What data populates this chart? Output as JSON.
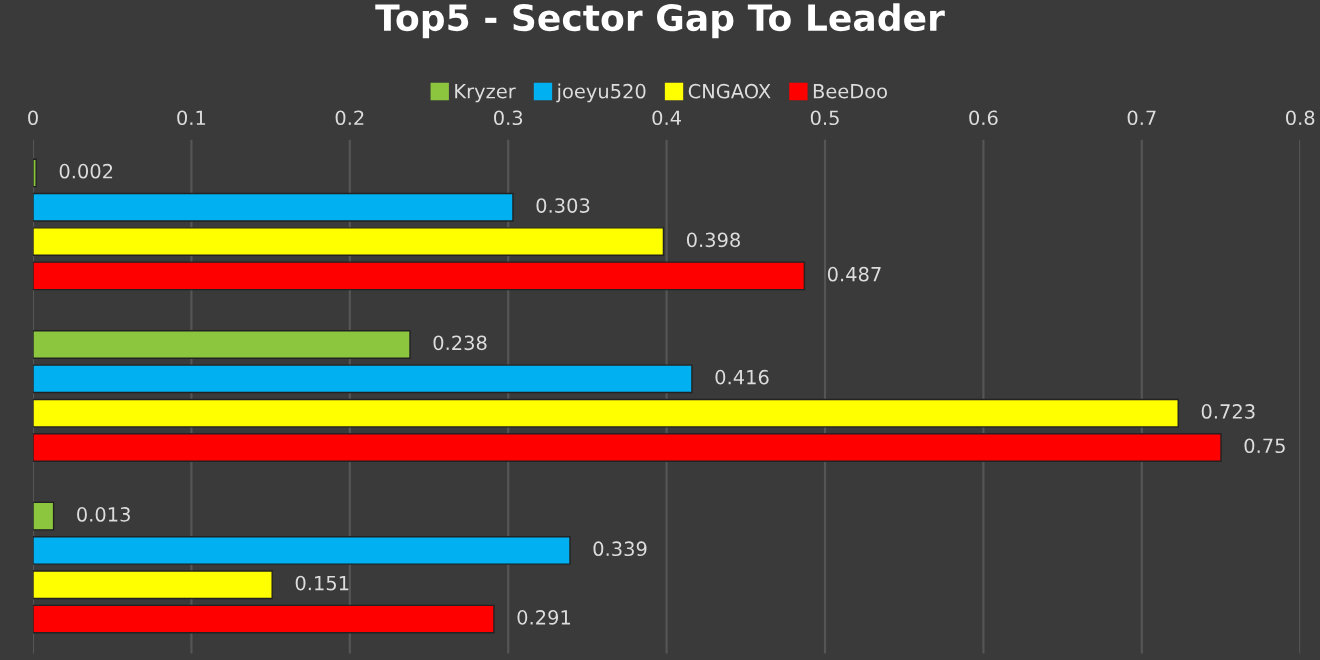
{
  "chart_data": {
    "type": "bar",
    "orientation": "horizontal",
    "title": "Top5 - Sector Gap To Leader",
    "categories": [
      null,
      null,
      null
    ],
    "series": [
      {
        "name": "Kryzer",
        "color": "#8cc63f",
        "values": [
          0.002,
          0.238,
          0.013
        ]
      },
      {
        "name": "joeyu520",
        "color": "#00b0f0",
        "values": [
          0.303,
          0.416,
          0.339
        ]
      },
      {
        "name": "CNGAOX",
        "color": "#ffff00",
        "values": [
          0.398,
          0.723,
          0.151
        ]
      },
      {
        "name": "BeeDoo",
        "color": "#ff0000",
        "values": [
          0.487,
          0.75,
          0.291
        ]
      }
    ],
    "xlim": [
      0,
      0.8
    ],
    "xticks": [
      0,
      0.1,
      0.2,
      0.3,
      0.4,
      0.5,
      0.6,
      0.7,
      0.8
    ],
    "grid": "x",
    "legend": "top",
    "data_labels": true
  }
}
